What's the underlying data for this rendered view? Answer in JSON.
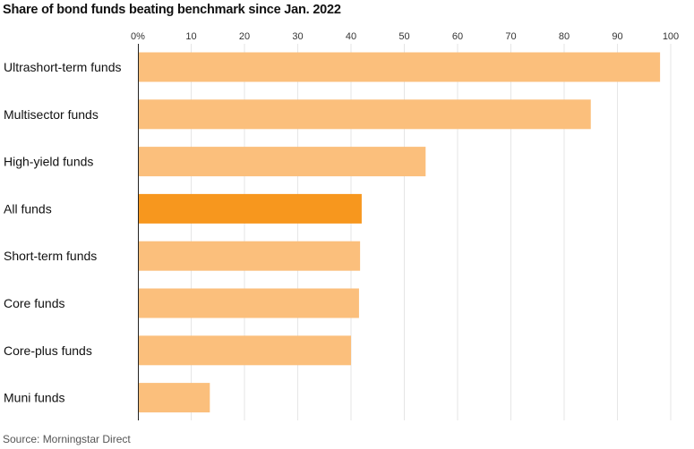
{
  "title": "Share of bond funds beating benchmark since Jan. 2022",
  "source": "Source: Morningstar Direct",
  "colors": {
    "bar": "#fbbf7c",
    "highlight": "#f7971e",
    "grid": "#e6e6e6",
    "axis": "#222222"
  },
  "chart_data": {
    "type": "bar",
    "orientation": "horizontal",
    "title": "Share of bond funds beating benchmark since Jan. 2022",
    "categories": [
      "Ultrashort-term funds",
      "Multisector funds",
      "High-yield funds",
      "All funds",
      "Short-term funds",
      "Core funds",
      "Core-plus funds",
      "Muni funds"
    ],
    "values": [
      98,
      85,
      54,
      42,
      41.7,
      41.5,
      40,
      13.5
    ],
    "highlight": "All funds",
    "xlim": [
      0,
      100
    ],
    "ticks": [
      "0%",
      "10",
      "20",
      "30",
      "40",
      "50",
      "60",
      "70",
      "80",
      "90",
      "100"
    ],
    "tick_values": [
      0,
      10,
      20,
      30,
      40,
      50,
      60,
      70,
      80,
      90,
      100
    ],
    "grid": true,
    "axis_position": "top"
  }
}
